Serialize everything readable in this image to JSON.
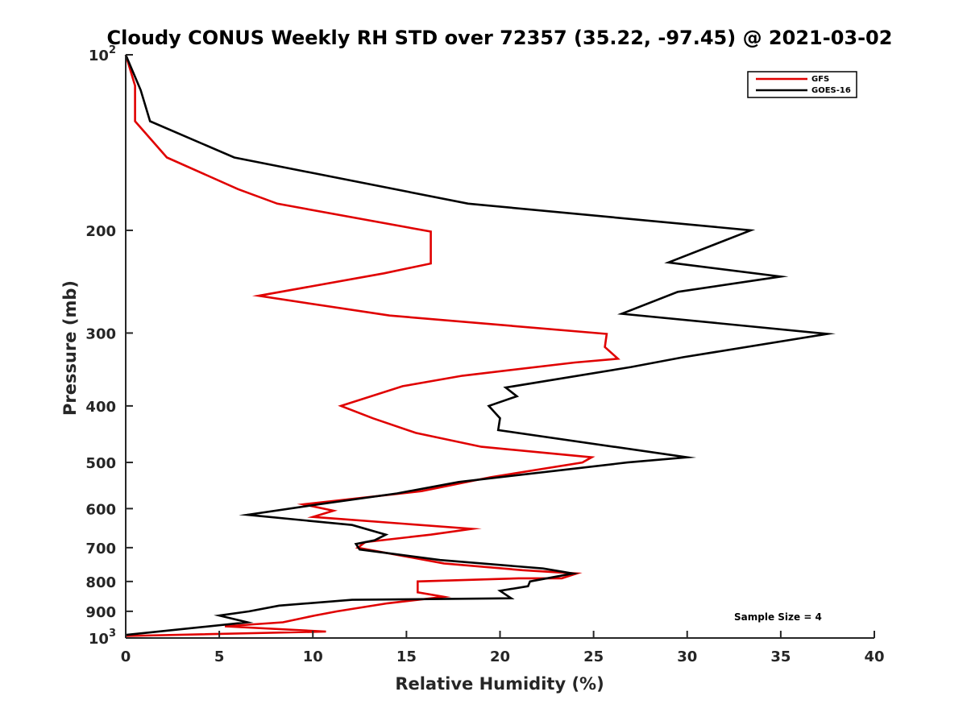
{
  "chart_data": {
    "type": "line",
    "title": "Cloudy CONUS Weekly RH STD over 72357 (35.22, -97.45) @ 2021-03-02",
    "xlabel": "Relative Humidity (%)",
    "ylabel": "Pressure (mb)",
    "xlim": [
      0,
      40
    ],
    "ylim": [
      100,
      1000
    ],
    "y_scale": "log",
    "y_reversed": true,
    "grid": false,
    "legend_position": "top-right",
    "x_ticks": [
      "0",
      "5",
      "10",
      "15",
      "20",
      "25",
      "30",
      "35",
      "40"
    ],
    "y_ticks": [
      {
        "value": 100,
        "label": "10",
        "sup": "2"
      },
      {
        "value": 200,
        "label": "200",
        "sup": ""
      },
      {
        "value": 300,
        "label": "300",
        "sup": ""
      },
      {
        "value": 400,
        "label": "400",
        "sup": ""
      },
      {
        "value": 500,
        "label": "500",
        "sup": ""
      },
      {
        "value": 600,
        "label": "600",
        "sup": ""
      },
      {
        "value": 700,
        "label": "700",
        "sup": ""
      },
      {
        "value": 800,
        "label": "800",
        "sup": ""
      },
      {
        "value": 900,
        "label": "900",
        "sup": ""
      },
      {
        "value": 1000,
        "label": "10",
        "sup": "3"
      }
    ],
    "annotation": "Sample Size = 4",
    "series": [
      {
        "name": "GFS",
        "color": "#e00000",
        "points": [
          [
            0.0,
            100
          ],
          [
            0.5,
            113
          ],
          [
            0.5,
            130
          ],
          [
            2.2,
            150
          ],
          [
            6.0,
            170
          ],
          [
            8.1,
            180
          ],
          [
            16.3,
            201
          ],
          [
            16.3,
            228
          ],
          [
            13.8,
            237
          ],
          [
            7.1,
            259
          ],
          [
            14.1,
            280
          ],
          [
            25.7,
            301
          ],
          [
            25.6,
            317
          ],
          [
            26.3,
            332
          ],
          [
            24.0,
            337
          ],
          [
            18.0,
            355
          ],
          [
            14.8,
            370
          ],
          [
            11.5,
            400
          ],
          [
            13.2,
            420
          ],
          [
            15.5,
            445
          ],
          [
            19.0,
            470
          ],
          [
            24.9,
            490
          ],
          [
            24.4,
            500
          ],
          [
            19.5,
            530
          ],
          [
            15.8,
            560
          ],
          [
            9.5,
            590
          ],
          [
            11.1,
            605
          ],
          [
            10.0,
            620
          ],
          [
            18.5,
            650
          ],
          [
            16.3,
            665
          ],
          [
            12.8,
            685
          ],
          [
            12.4,
            700
          ],
          [
            17.0,
            745
          ],
          [
            21.2,
            765
          ],
          [
            24.1,
            775
          ],
          [
            23.3,
            790
          ],
          [
            21.0,
            790
          ],
          [
            15.6,
            800
          ],
          [
            15.6,
            835
          ],
          [
            17.0,
            850
          ],
          [
            14.0,
            872
          ],
          [
            11.3,
            900
          ],
          [
            10.1,
            915
          ],
          [
            8.4,
            940
          ],
          [
            5.3,
            955
          ],
          [
            10.7,
            975
          ],
          [
            0.0,
            992
          ]
        ]
      },
      {
        "name": "GOES-16",
        "color": "#000000",
        "points": [
          [
            0.0,
            100
          ],
          [
            0.8,
            115
          ],
          [
            1.3,
            130
          ],
          [
            5.8,
            150
          ],
          [
            18.3,
            180
          ],
          [
            33.4,
            200
          ],
          [
            29.0,
            227
          ],
          [
            35.0,
            240
          ],
          [
            29.5,
            255
          ],
          [
            26.5,
            278
          ],
          [
            37.5,
            301
          ],
          [
            29.8,
            330
          ],
          [
            27.0,
            343
          ],
          [
            20.3,
            372
          ],
          [
            20.9,
            385
          ],
          [
            19.4,
            400
          ],
          [
            20.0,
            420
          ],
          [
            19.9,
            440
          ],
          [
            30.0,
            490
          ],
          [
            26.8,
            500
          ],
          [
            17.8,
            540
          ],
          [
            14.5,
            565
          ],
          [
            10.3,
            590
          ],
          [
            6.5,
            615
          ],
          [
            12.1,
            640
          ],
          [
            13.9,
            665
          ],
          [
            13.3,
            680
          ],
          [
            12.3,
            690
          ],
          [
            12.5,
            705
          ],
          [
            16.8,
            735
          ],
          [
            22.3,
            760
          ],
          [
            23.9,
            775
          ],
          [
            21.6,
            800
          ],
          [
            21.5,
            815
          ],
          [
            20.0,
            830
          ],
          [
            20.6,
            855
          ],
          [
            12.1,
            860
          ],
          [
            8.2,
            880
          ],
          [
            6.6,
            900
          ],
          [
            5.0,
            915
          ],
          [
            6.5,
            940
          ],
          [
            0.0,
            988
          ]
        ]
      }
    ]
  }
}
